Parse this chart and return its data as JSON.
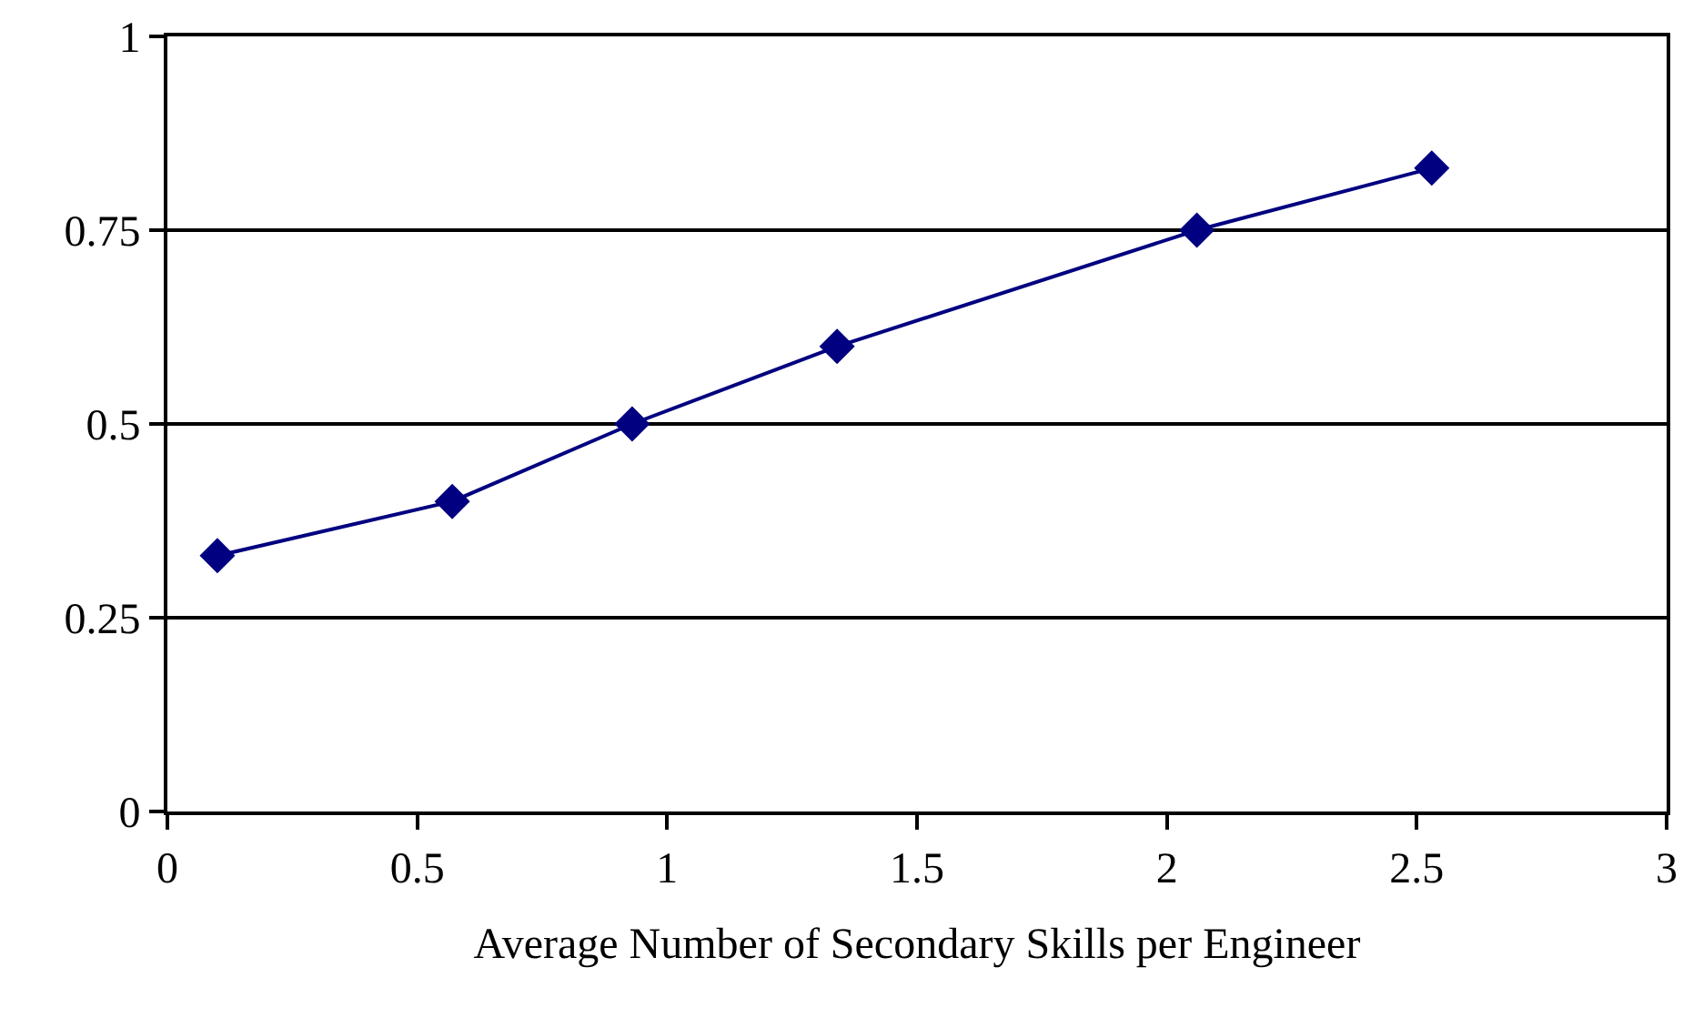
{
  "chart_data": {
    "type": "line",
    "xlabel": "Average Number of Secondary Skills per Engineer",
    "x": [
      0.1,
      0.57,
      0.93,
      1.34,
      2.06,
      2.53
    ],
    "values": [
      0.33,
      0.4,
      0.5,
      0.6,
      0.75,
      0.83
    ],
    "color": "#000080",
    "marker": "diamond",
    "line_style": "solid",
    "xlim": [
      0,
      3
    ],
    "xticks": [
      0,
      0.5,
      1,
      1.5,
      2,
      2.5,
      3
    ],
    "ylim": [
      0,
      1
    ],
    "yticks": [
      0,
      0.25,
      0.5,
      0.75,
      1
    ],
    "grid": "y",
    "legend": false
  }
}
